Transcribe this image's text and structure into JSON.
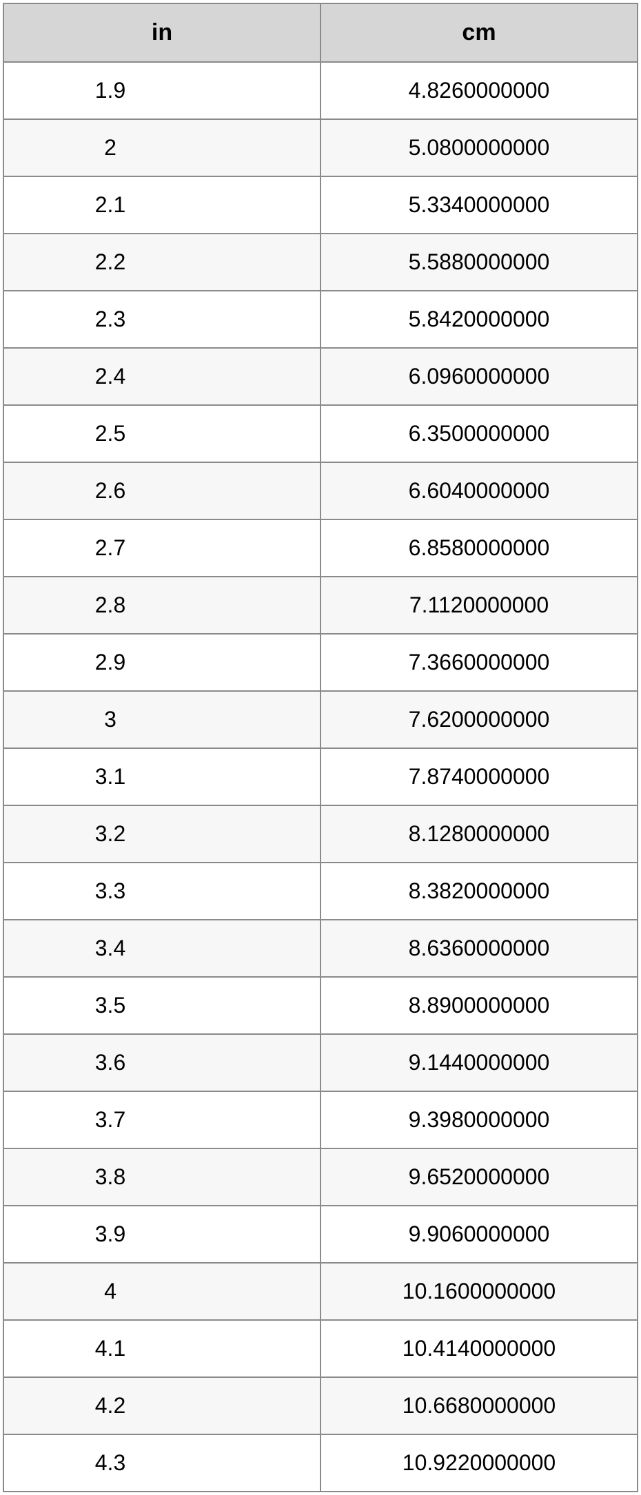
{
  "table": {
    "type": "table",
    "header_bg_color": "#d6d6d6",
    "border_color": "#8a8a8a",
    "row_alt_bg_color": "#f7f7f7",
    "row_bg_color": "#ffffff",
    "header_fontsize": 34,
    "cell_fontsize": 32,
    "text_color": "#000000",
    "columns": [
      {
        "label": "in",
        "align": "center"
      },
      {
        "label": "cm",
        "align": "center"
      }
    ],
    "rows": [
      [
        "1.9",
        "4.8260000000"
      ],
      [
        "2",
        "5.0800000000"
      ],
      [
        "2.1",
        "5.3340000000"
      ],
      [
        "2.2",
        "5.5880000000"
      ],
      [
        "2.3",
        "5.8420000000"
      ],
      [
        "2.4",
        "6.0960000000"
      ],
      [
        "2.5",
        "6.3500000000"
      ],
      [
        "2.6",
        "6.6040000000"
      ],
      [
        "2.7",
        "6.8580000000"
      ],
      [
        "2.8",
        "7.1120000000"
      ],
      [
        "2.9",
        "7.3660000000"
      ],
      [
        "3",
        "7.6200000000"
      ],
      [
        "3.1",
        "7.8740000000"
      ],
      [
        "3.2",
        "8.1280000000"
      ],
      [
        "3.3",
        "8.3820000000"
      ],
      [
        "3.4",
        "8.6360000000"
      ],
      [
        "3.5",
        "8.8900000000"
      ],
      [
        "3.6",
        "9.1440000000"
      ],
      [
        "3.7",
        "9.3980000000"
      ],
      [
        "3.8",
        "9.6520000000"
      ],
      [
        "3.9",
        "9.9060000000"
      ],
      [
        "4",
        "10.1600000000"
      ],
      [
        "4.1",
        "10.4140000000"
      ],
      [
        "4.2",
        "10.6680000000"
      ],
      [
        "4.3",
        "10.9220000000"
      ]
    ]
  }
}
